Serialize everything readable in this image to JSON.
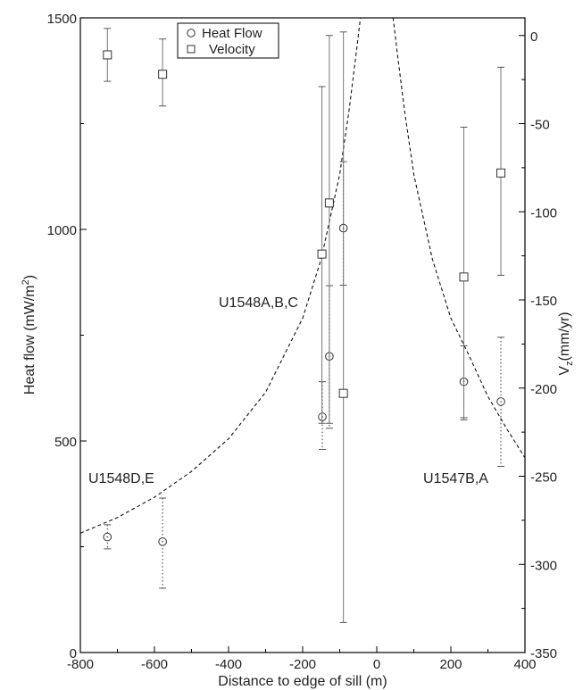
{
  "chart_data": {
    "type": "scatter",
    "xlabel": "Distance to edge of sill (m)",
    "ylabel_left": {
      "main": "Heat flow (mW/m",
      "sup": "2",
      "end": ")"
    },
    "ylabel_right": {
      "main": "V",
      "sub": "z",
      "end": "(mm/yr)"
    },
    "xlim": [
      -800,
      400
    ],
    "ylim_left": [
      0,
      1500
    ],
    "ylim_right": [
      -350,
      10
    ],
    "x_ticks": [
      -800,
      -600,
      -400,
      -200,
      0,
      200,
      400
    ],
    "x_tick_labels": [
      "-800",
      "-600",
      "-400",
      "-200",
      "0",
      "200",
      "400"
    ],
    "y_left_ticks": [
      0,
      500,
      1000,
      1500
    ],
    "y_left_tick_labels": [
      "0",
      "500",
      "1000",
      "1500"
    ],
    "y_right_ticks": [
      0,
      -50,
      -100,
      -150,
      -200,
      -250,
      -300,
      -350
    ],
    "y_right_tick_labels": [
      "0",
      "-50",
      "-100",
      "-150",
      "-200",
      "-250",
      "-300",
      "-350"
    ],
    "legend": {
      "position": "top-center",
      "entries": [
        {
          "marker": "circle",
          "label": "Heat Flow"
        },
        {
          "marker": "square",
          "label": "Velocity"
        }
      ]
    },
    "annotations": [
      {
        "text": "U1548D,E",
        "x": -660,
        "y": 415
      },
      {
        "text": "U1548A,B,C",
        "x": -200,
        "y": 780
      },
      {
        "text": "U1547B,A",
        "x": 200,
        "y": 415
      }
    ],
    "series": [
      {
        "name": "Heat Flow",
        "axis": "left",
        "marker": "circle",
        "errorbar_style": "dotted",
        "points": [
          {
            "x": -727,
            "y": 273,
            "err_low": 245,
            "err_high": 302
          },
          {
            "x": -578,
            "y": 262,
            "err_low": 152,
            "err_high": 365
          },
          {
            "x": -147,
            "y": 557,
            "err_low": 480,
            "err_high": 640
          },
          {
            "x": -128,
            "y": 700,
            "err_low": 530,
            "err_high": 867
          },
          {
            "x": -90,
            "y": 1003,
            "err_low": 868,
            "err_high": 1160
          },
          {
            "x": 235,
            "y": 640,
            "err_low": 555,
            "err_high": 725
          },
          {
            "x": 335,
            "y": 593,
            "err_low": 440,
            "err_high": 745
          }
        ]
      },
      {
        "name": "Velocity",
        "axis": "right",
        "marker": "square",
        "errorbar_style": "solid",
        "points": [
          {
            "x": -727,
            "y": -11,
            "err_low": -26,
            "err_high": 4
          },
          {
            "x": -578,
            "y": -22,
            "err_low": -40,
            "err_high": -2
          },
          {
            "x": -148,
            "y": -124,
            "err_low": -220,
            "err_high": -29
          },
          {
            "x": -128,
            "y": -95,
            "err_low": -220,
            "err_high": 0
          },
          {
            "x": -90,
            "y": -203,
            "err_low": -333,
            "err_high": 2
          },
          {
            "x": 235,
            "y": -137,
            "err_low": -218,
            "err_high": -52
          },
          {
            "x": 335,
            "y": -78,
            "err_low": -136,
            "err_high": -18
          }
        ]
      },
      {
        "name": "",
        "axis": "left",
        "type": "line",
        "style": "dashed",
        "points": [
          [
            -800,
            282
          ],
          [
            -700,
            319
          ],
          [
            -600,
            367
          ],
          [
            -500,
            428
          ],
          [
            -400,
            505
          ],
          [
            -300,
            615
          ],
          [
            -200,
            790
          ],
          [
            -150,
            930
          ],
          [
            -100,
            1130
          ],
          [
            -75,
            1280
          ],
          [
            -55,
            1420
          ],
          [
            -40,
            1530
          ],
          [
            40,
            1530
          ],
          [
            55,
            1420
          ],
          [
            75,
            1280
          ],
          [
            100,
            1130
          ],
          [
            150,
            930
          ],
          [
            200,
            790
          ],
          [
            250,
            700
          ],
          [
            300,
            605
          ],
          [
            350,
            530
          ],
          [
            400,
            460
          ],
          [
            420,
            440
          ]
        ]
      }
    ]
  }
}
